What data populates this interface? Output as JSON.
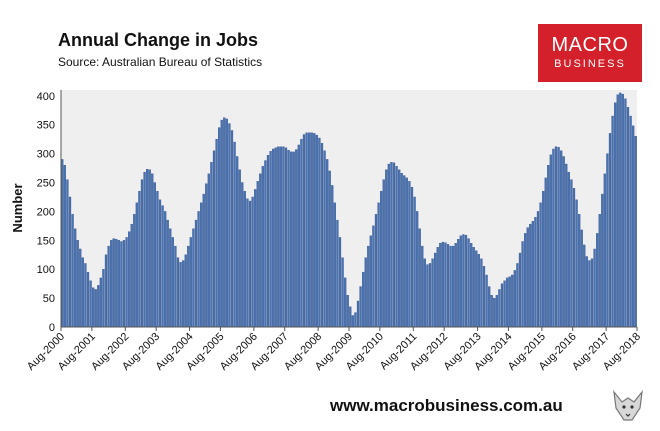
{
  "header": {
    "title": "Annual Change in Jobs",
    "subtitle": "Source: Australian Bureau of Statistics"
  },
  "logo": {
    "top": "MACRO",
    "bottom": "BUSINESS",
    "color": "#d4202a"
  },
  "footer": {
    "url": "www.macrobusiness.com.au"
  },
  "colors": {
    "bar": "#4a72b0",
    "bar_edge": "#2e4f86",
    "plot_bg": "#efefef"
  },
  "chart_data": {
    "type": "bar",
    "title": "Annual Change in Jobs",
    "xlabel": "",
    "ylabel": "Number",
    "ylim": [
      0,
      410
    ],
    "yticks": [
      0,
      50,
      100,
      150,
      200,
      250,
      300,
      350,
      400
    ],
    "xtick_labels": [
      "Aug-2000",
      "Aug-2001",
      "Aug-2002",
      "Aug-2003",
      "Aug-2004",
      "Aug-2005",
      "Aug-2006",
      "Aug-2007",
      "Aug-2008",
      "Aug-2009",
      "Aug-2010",
      "Aug-2011",
      "Aug-2012",
      "Aug-2013",
      "Aug-2014",
      "Aug-2015",
      "Aug-2016",
      "Aug-2017",
      "Aug-2018"
    ],
    "grid": false,
    "legend": "none",
    "series": [
      {
        "values": [
          290,
          280,
          255,
          225,
          195,
          170,
          150,
          135,
          120,
          110,
          95,
          80,
          68,
          65,
          72,
          85,
          100,
          125,
          140,
          150,
          153,
          152,
          150,
          148,
          150,
          155,
          165,
          178,
          195,
          215,
          235,
          255,
          268,
          273,
          272,
          265,
          250,
          235,
          220,
          210,
          200,
          185,
          170,
          155,
          140,
          120,
          112,
          115,
          125,
          140,
          155,
          170,
          185,
          200,
          215,
          230,
          248,
          265,
          285,
          305,
          325,
          345,
          358,
          362,
          360,
          352,
          340,
          320,
          295,
          272,
          250,
          235,
          222,
          218,
          225,
          238,
          252,
          265,
          278,
          288,
          297,
          304,
          308,
          310,
          312,
          312,
          312,
          310,
          306,
          303,
          303,
          307,
          315,
          325,
          333,
          336,
          336,
          336,
          335,
          332,
          327,
          318,
          305,
          290,
          270,
          245,
          215,
          185,
          155,
          120,
          85,
          55,
          35,
          20,
          25,
          45,
          70,
          95,
          120,
          140,
          158,
          175,
          195,
          215,
          235,
          255,
          272,
          282,
          285,
          284,
          278,
          272,
          266,
          262,
          258,
          252,
          242,
          225,
          200,
          170,
          140,
          118,
          108,
          110,
          118,
          128,
          138,
          145,
          147,
          146,
          143,
          140,
          140,
          145,
          152,
          158,
          160,
          159,
          153,
          145,
          138,
          132,
          126,
          118,
          105,
          90,
          70,
          55,
          50,
          55,
          65,
          75,
          80,
          85,
          87,
          90,
          98,
          110,
          128,
          148,
          162,
          172,
          178,
          183,
          190,
          200,
          215,
          235,
          258,
          280,
          298,
          308,
          312,
          311,
          305,
          295,
          282,
          268,
          255,
          240,
          220,
          195,
          168,
          142,
          122,
          115,
          118,
          135,
          162,
          195,
          230,
          265,
          300,
          335,
          365,
          388,
          402,
          405,
          403,
          395,
          380,
          365,
          348,
          330
        ]
      }
    ]
  }
}
